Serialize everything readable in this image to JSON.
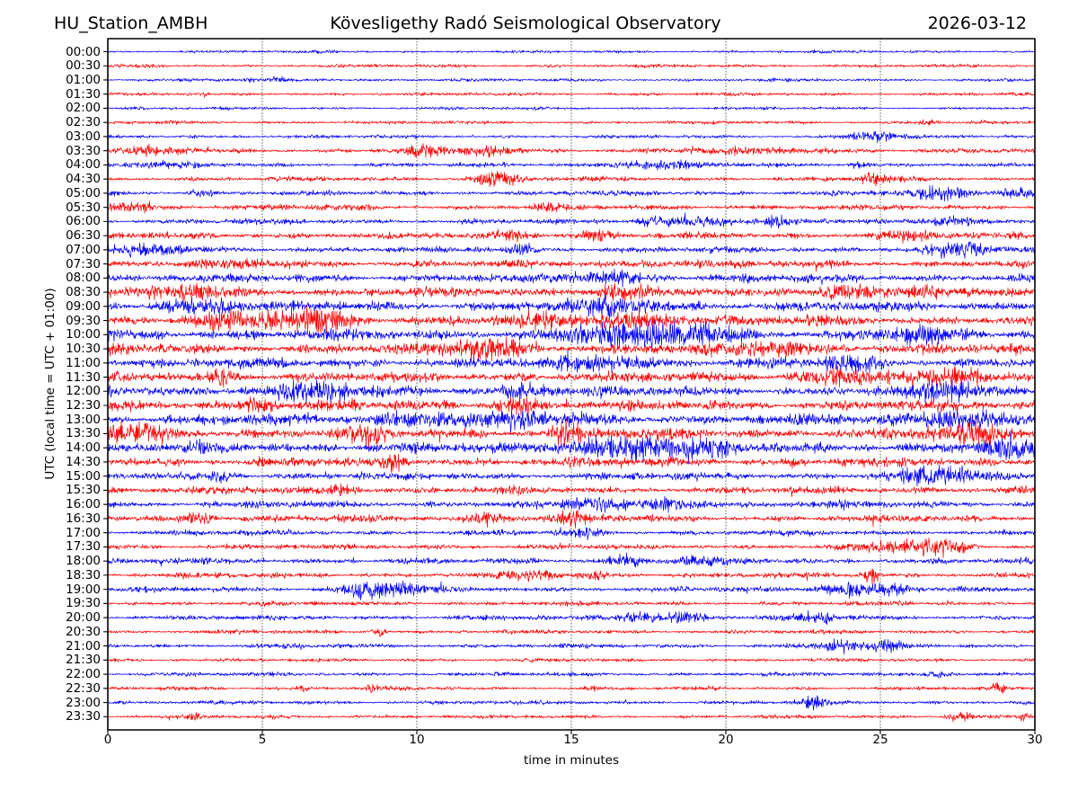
{
  "chart_data": {
    "type": "line",
    "subtype": "helicorder-drumplot",
    "title_left": "HU_Station_AMBH",
    "title_center": "Kövesligethy Radó Seismological Observatory",
    "title_right": "2026-03-12",
    "xlabel": "time in minutes",
    "ylabel": "UTC (local time = UTC + 01:00)",
    "xlim": [
      0,
      30
    ],
    "x_ticks": [
      0,
      5,
      10,
      15,
      20,
      25,
      30
    ],
    "grid": {
      "style": "vertical-dotted",
      "at_minutes": [
        5,
        10,
        15,
        20,
        25
      ]
    },
    "trace_colors": {
      "hour_rows": "#0000ff",
      "half_hour_rows": "#ff0000"
    },
    "row_note": "amp = background half-amplitude px; bursts = [minute_center, width_minutes, extra_half_amplitude_px]",
    "rows": [
      {
        "label": "00:00",
        "color": "#0000ff",
        "amp": 1.5,
        "bursts": []
      },
      {
        "label": "00:30",
        "color": "#ff0000",
        "amp": 1.7,
        "bursts": []
      },
      {
        "label": "01:00",
        "color": "#0000ff",
        "amp": 1.7,
        "bursts": [
          [
            5.5,
            1.2,
            1.2
          ]
        ]
      },
      {
        "label": "01:30",
        "color": "#ff0000",
        "amp": 1.7,
        "bursts": []
      },
      {
        "label": "02:00",
        "color": "#0000ff",
        "amp": 1.5,
        "bursts": []
      },
      {
        "label": "02:30",
        "color": "#ff0000",
        "amp": 1.7,
        "bursts": [
          [
            26.5,
            0.4,
            1.5
          ]
        ]
      },
      {
        "label": "03:00",
        "color": "#0000ff",
        "amp": 1.8,
        "bursts": [
          [
            24.8,
            0.8,
            5.0
          ]
        ]
      },
      {
        "label": "03:30",
        "color": "#ff0000",
        "amp": 2.6,
        "bursts": [
          [
            1.5,
            1.0,
            3.5
          ],
          [
            10.2,
            0.7,
            4.5
          ],
          [
            12.4,
            0.7,
            4.5
          ],
          [
            21.0,
            2.5,
            1.5
          ]
        ]
      },
      {
        "label": "04:00",
        "color": "#0000ff",
        "amp": 2.2,
        "bursts": [
          [
            1.8,
            1.3,
            2.5
          ],
          [
            17.6,
            1.4,
            4.0
          ],
          [
            24.3,
            0.3,
            3.5
          ]
        ]
      },
      {
        "label": "04:30",
        "color": "#ff0000",
        "amp": 2.4,
        "bursts": [
          [
            12.6,
            0.7,
            7.5
          ],
          [
            24.8,
            0.4,
            5.5
          ]
        ]
      },
      {
        "label": "05:00",
        "color": "#0000ff",
        "amp": 2.6,
        "bursts": [
          [
            3.1,
            0.4,
            3.0
          ],
          [
            27.1,
            0.9,
            5.5
          ],
          [
            29.4,
            0.6,
            5.5
          ]
        ]
      },
      {
        "label": "05:30",
        "color": "#ff0000",
        "amp": 3.0,
        "bursts": [
          [
            0.6,
            1.0,
            3.5
          ],
          [
            14.2,
            0.4,
            3.0
          ]
        ]
      },
      {
        "label": "06:00",
        "color": "#0000ff",
        "amp": 2.7,
        "bursts": [
          [
            17.8,
            0.7,
            4.5
          ],
          [
            19.6,
            0.8,
            4.0
          ],
          [
            21.6,
            0.5,
            3.5
          ],
          [
            27.2,
            1.0,
            4.0
          ]
        ]
      },
      {
        "label": "06:30",
        "color": "#ff0000",
        "amp": 3.3,
        "bursts": [
          [
            13.1,
            0.7,
            4.5
          ],
          [
            15.8,
            0.5,
            4.0
          ],
          [
            25.8,
            1.1,
            3.5
          ]
        ]
      },
      {
        "label": "07:00",
        "color": "#0000ff",
        "amp": 3.3,
        "bursts": [
          [
            1.6,
            1.1,
            4.0
          ],
          [
            13.4,
            0.4,
            4.0
          ],
          [
            27.6,
            0.9,
            6.0
          ]
        ]
      },
      {
        "label": "07:30",
        "color": "#ff0000",
        "amp": 3.8,
        "bursts": [
          [
            4.5,
            1.5,
            2.0
          ],
          [
            18.0,
            2.0,
            1.5
          ]
        ]
      },
      {
        "label": "08:00",
        "color": "#0000ff",
        "amp": 4.3,
        "bursts": [
          [
            16.2,
            1.4,
            5.0
          ]
        ]
      },
      {
        "label": "08:30",
        "color": "#ff0000",
        "amp": 4.8,
        "bursts": [
          [
            2.6,
            0.9,
            5.0
          ],
          [
            16.6,
            0.9,
            6.0
          ],
          [
            23.9,
            0.9,
            6.0
          ],
          [
            26.1,
            0.9,
            5.0
          ]
        ]
      },
      {
        "label": "09:00",
        "color": "#0000ff",
        "amp": 5.2,
        "bursts": [
          [
            2.6,
            0.7,
            7.0
          ],
          [
            3.8,
            0.4,
            6.0
          ],
          [
            16.4,
            1.4,
            7.0
          ]
        ]
      },
      {
        "label": "09:30",
        "color": "#ff0000",
        "amp": 5.2,
        "bursts": [
          [
            3.6,
            0.7,
            6.0
          ],
          [
            5.8,
            1.3,
            7.0
          ],
          [
            7.2,
            0.9,
            7.0
          ],
          [
            14.1,
            0.7,
            6.0
          ],
          [
            17.0,
            1.8,
            6.0
          ]
        ]
      },
      {
        "label": "10:00",
        "color": "#0000ff",
        "amp": 5.6,
        "bursts": [
          [
            16.6,
            2.2,
            8.0
          ],
          [
            19.2,
            1.4,
            7.0
          ],
          [
            26.1,
            0.9,
            6.0
          ]
        ]
      },
      {
        "label": "10:30",
        "color": "#ff0000",
        "amp": 5.2,
        "bursts": [
          [
            11.8,
            0.9,
            8.0
          ],
          [
            12.9,
            0.7,
            7.0
          ],
          [
            21.6,
            1.4,
            6.0
          ]
        ]
      },
      {
        "label": "11:00",
        "color": "#0000ff",
        "amp": 5.2,
        "bursts": [
          [
            16.1,
            1.4,
            6.0
          ],
          [
            24.1,
            0.9,
            6.0
          ]
        ]
      },
      {
        "label": "11:30",
        "color": "#ff0000",
        "amp": 5.2,
        "bursts": [
          [
            3.7,
            0.4,
            7.0
          ],
          [
            23.9,
            1.4,
            6.5
          ],
          [
            27.6,
            0.9,
            6.0
          ]
        ]
      },
      {
        "label": "12:00",
        "color": "#0000ff",
        "amp": 5.2,
        "bursts": [
          [
            6.6,
            1.4,
            7.0
          ],
          [
            13.6,
            0.9,
            6.0
          ],
          [
            27.3,
            1.1,
            7.0
          ]
        ]
      },
      {
        "label": "12:30",
        "color": "#ff0000",
        "amp": 5.2,
        "bursts": [
          [
            4.9,
            0.6,
            6.0
          ],
          [
            13.3,
            0.7,
            7.0
          ]
        ]
      },
      {
        "label": "13:00",
        "color": "#0000ff",
        "amp": 5.6,
        "bursts": [
          [
            10.1,
            1.4,
            7.0
          ],
          [
            13.1,
            1.4,
            7.0
          ],
          [
            27.6,
            1.4,
            8.0
          ]
        ]
      },
      {
        "label": "13:30",
        "color": "#ff0000",
        "amp": 5.6,
        "bursts": [
          [
            0.9,
            1.1,
            8.0
          ],
          [
            8.4,
            0.4,
            7.0
          ],
          [
            14.9,
            0.6,
            7.0
          ],
          [
            28.1,
            1.4,
            7.0
          ]
        ]
      },
      {
        "label": "14:00",
        "color": "#0000ff",
        "amp": 5.6,
        "bursts": [
          [
            16.6,
            1.8,
            8.0
          ],
          [
            18.6,
            1.4,
            7.0
          ],
          [
            29.1,
            0.9,
            7.0
          ]
        ]
      },
      {
        "label": "14:30",
        "color": "#ff0000",
        "amp": 4.7,
        "bursts": [
          [
            9.3,
            0.4,
            6.0
          ]
        ]
      },
      {
        "label": "15:00",
        "color": "#0000ff",
        "amp": 3.8,
        "bursts": [
          [
            3.7,
            0.4,
            5.0
          ],
          [
            26.9,
            1.4,
            7.0
          ]
        ]
      },
      {
        "label": "15:30",
        "color": "#ff0000",
        "amp": 3.8,
        "bursts": [
          [
            7.6,
            0.7,
            4.0
          ]
        ]
      },
      {
        "label": "16:00",
        "color": "#0000ff",
        "amp": 3.6,
        "bursts": [
          [
            15.9,
            0.9,
            5.5
          ],
          [
            18.4,
            0.9,
            5.0
          ]
        ]
      },
      {
        "label": "16:30",
        "color": "#ff0000",
        "amp": 3.6,
        "bursts": [
          [
            2.9,
            0.7,
            4.5
          ],
          [
            12.4,
            0.7,
            5.0
          ],
          [
            14.9,
            0.7,
            5.0
          ]
        ]
      },
      {
        "label": "17:00",
        "color": "#0000ff",
        "amp": 2.8,
        "bursts": [
          [
            15.4,
            0.4,
            5.0
          ]
        ]
      },
      {
        "label": "17:30",
        "color": "#ff0000",
        "amp": 2.8,
        "bursts": [
          [
            25.9,
            1.2,
            6.0
          ],
          [
            27.1,
            0.7,
            5.0
          ]
        ]
      },
      {
        "label": "18:00",
        "color": "#0000ff",
        "amp": 3.0,
        "bursts": [
          [
            16.7,
            0.7,
            5.0
          ],
          [
            19.1,
            0.7,
            3.5
          ]
        ]
      },
      {
        "label": "18:30",
        "color": "#ff0000",
        "amp": 2.8,
        "bursts": [
          [
            13.8,
            0.7,
            4.5
          ],
          [
            15.7,
            0.4,
            4.0
          ],
          [
            24.7,
            0.25,
            8.0
          ]
        ]
      },
      {
        "label": "19:00",
        "color": "#0000ff",
        "amp": 2.8,
        "bursts": [
          [
            8.4,
            0.9,
            8.5
          ],
          [
            9.7,
            0.7,
            5.0
          ],
          [
            23.9,
            0.9,
            6.0
          ],
          [
            25.4,
            0.7,
            5.0
          ]
        ]
      },
      {
        "label": "19:30",
        "color": "#ff0000",
        "amp": 2.3,
        "bursts": []
      },
      {
        "label": "20:00",
        "color": "#0000ff",
        "amp": 2.6,
        "bursts": [
          [
            17.1,
            0.7,
            5.0
          ],
          [
            18.6,
            0.9,
            5.0
          ],
          [
            22.9,
            0.7,
            5.0
          ]
        ]
      },
      {
        "label": "20:30",
        "color": "#ff0000",
        "amp": 2.1,
        "bursts": [
          [
            8.8,
            0.25,
            4.0
          ]
        ]
      },
      {
        "label": "21:00",
        "color": "#0000ff",
        "amp": 2.3,
        "bursts": [
          [
            23.6,
            0.7,
            5.0
          ],
          [
            25.1,
            0.7,
            5.0
          ]
        ]
      },
      {
        "label": "21:30",
        "color": "#ff0000",
        "amp": 1.9,
        "bursts": []
      },
      {
        "label": "22:00",
        "color": "#0000ff",
        "amp": 2.1,
        "bursts": [
          [
            26.8,
            0.4,
            3.5
          ]
        ]
      },
      {
        "label": "22:30",
        "color": "#ff0000",
        "amp": 1.9,
        "bursts": [
          [
            6.3,
            0.2,
            3.0
          ],
          [
            8.6,
            0.25,
            3.0
          ],
          [
            15.7,
            0.25,
            3.0
          ],
          [
            28.8,
            0.25,
            4.5
          ]
        ]
      },
      {
        "label": "23:00",
        "color": "#0000ff",
        "amp": 2.1,
        "bursts": [
          [
            22.8,
            0.4,
            5.5
          ]
        ]
      },
      {
        "label": "23:30",
        "color": "#ff0000",
        "amp": 1.9,
        "bursts": [
          [
            2.8,
            0.2,
            4.5
          ],
          [
            27.6,
            0.4,
            4.5
          ],
          [
            29.6,
            0.25,
            3.5
          ]
        ]
      }
    ]
  }
}
